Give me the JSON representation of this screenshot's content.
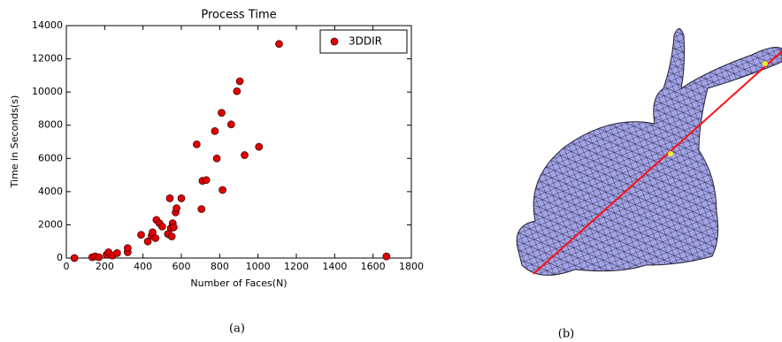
{
  "chart_data": {
    "type": "scatter",
    "title": "Process Time",
    "x_label": "Number of Faces(N)",
    "y_label": "Time in Seconds(s)",
    "xlim": [
      0,
      1800
    ],
    "xticks": [
      0,
      200,
      400,
      600,
      800,
      1000,
      1200,
      1400,
      1600,
      1800
    ],
    "ylim": [
      0,
      14000
    ],
    "yticks": [
      0,
      2000,
      4000,
      6000,
      8000,
      10000,
      12000,
      14000
    ],
    "legend": "upper right",
    "series": [
      {
        "name": "3DDIR",
        "color": "#e00000",
        "x": [
          42,
          135,
          150,
          170,
          210,
          220,
          240,
          265,
          320,
          320,
          390,
          425,
          445,
          450,
          465,
          470,
          485,
          500,
          530,
          540,
          545,
          550,
          555,
          560,
          570,
          575,
          600,
          680,
          705,
          710,
          730,
          775,
          785,
          810,
          815,
          860,
          890,
          905,
          930,
          1005,
          1110,
          1670
        ],
        "values": [
          0,
          50,
          100,
          50,
          200,
          350,
          150,
          300,
          350,
          600,
          1400,
          1000,
          1350,
          1550,
          1200,
          2300,
          2100,
          1900,
          1450,
          3600,
          1800,
          1300,
          2100,
          1850,
          2750,
          3000,
          3600,
          6850,
          2950,
          4650,
          4700,
          7650,
          6000,
          8750,
          4100,
          8050,
          10050,
          10650,
          6200,
          6700,
          12900,
          100
        ]
      }
    ]
  },
  "captions": [
    "(a)",
    "(b)"
  ]
}
